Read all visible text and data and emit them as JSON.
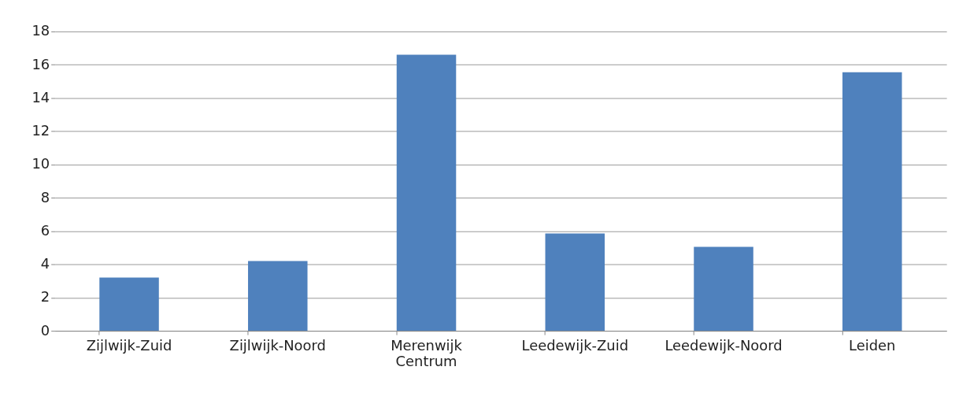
{
  "chart_data": {
    "type": "bar",
    "categories": [
      "Zijlwijk-Zuid",
      "Zijlwijk-Noord",
      "Merenwijk Centrum",
      "Leedewijk-Zuid",
      "Leedewijk-Noord",
      "Leiden"
    ],
    "values": [
      3.2,
      4.2,
      16.6,
      5.85,
      5.05,
      15.55
    ],
    "color": "#4f81bd",
    "ylim": [
      0,
      18
    ],
    "yticks": [
      0,
      2,
      4,
      6,
      8,
      10,
      12,
      14,
      16,
      18
    ],
    "grid": "y"
  }
}
